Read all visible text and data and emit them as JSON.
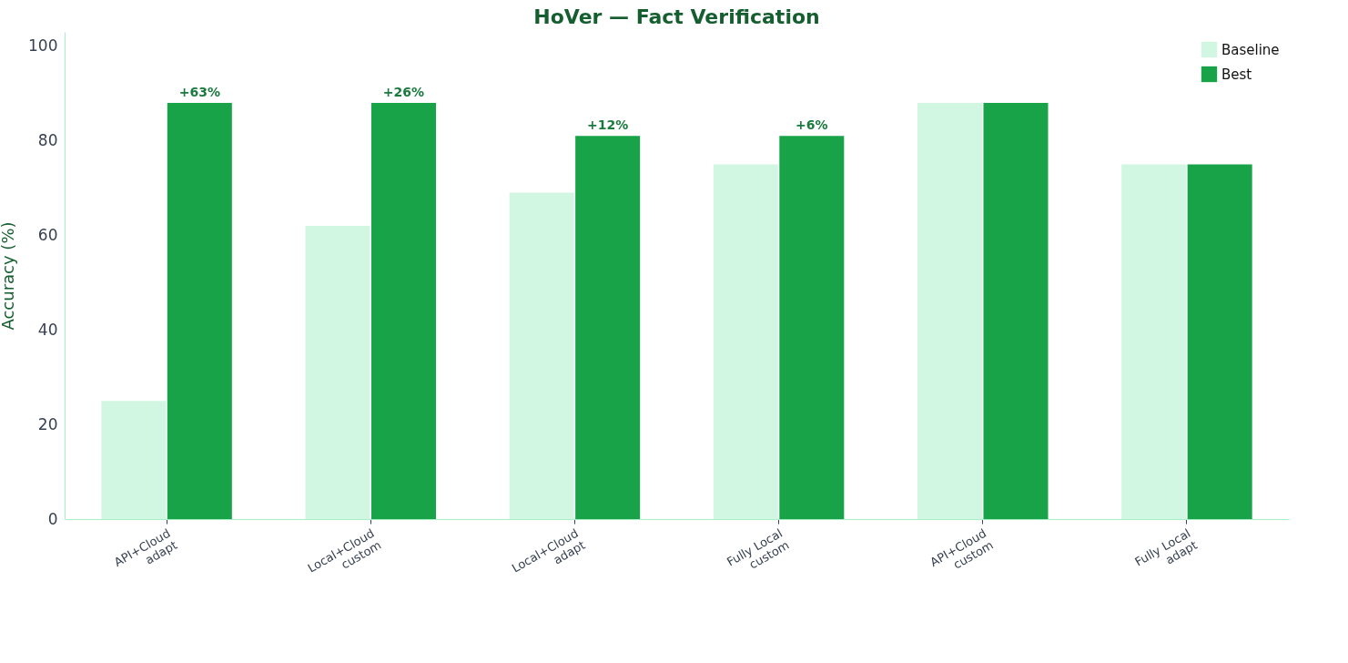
{
  "chart_data": {
    "type": "bar",
    "title": "HoVer — Fact Verification",
    "ylabel": "Accuracy (%)",
    "categories": [
      "API+Cloud\nadapt",
      "Local+Cloud\ncustom",
      "Local+Cloud\nadapt",
      "Fully Local\ncustom",
      "API+Cloud\ncustom",
      "Fully Local\nadapt"
    ],
    "series": [
      {
        "name": "Baseline",
        "color": "#d1f7e3",
        "values": [
          25,
          62,
          69,
          75,
          88,
          75
        ]
      },
      {
        "name": "Best",
        "color": "#18a349",
        "values": [
          88,
          88,
          81,
          81,
          88,
          75
        ]
      }
    ],
    "annotations": [
      {
        "text": "+63%",
        "x": "API+Cloud\nadapt",
        "y": 88
      },
      {
        "text": "+26%",
        "x": "Local+Cloud\ncustom",
        "y": 88
      },
      {
        "text": "+12%",
        "x": "Local+Cloud\nadapt",
        "y": 81
      },
      {
        "text": "+6%",
        "x": "Fully Local\ncustom",
        "y": 81
      }
    ],
    "ylim": [
      0,
      103
    ],
    "yticks": [
      0,
      20,
      40,
      60,
      80,
      100
    ],
    "grid": false,
    "legend": "top right"
  }
}
